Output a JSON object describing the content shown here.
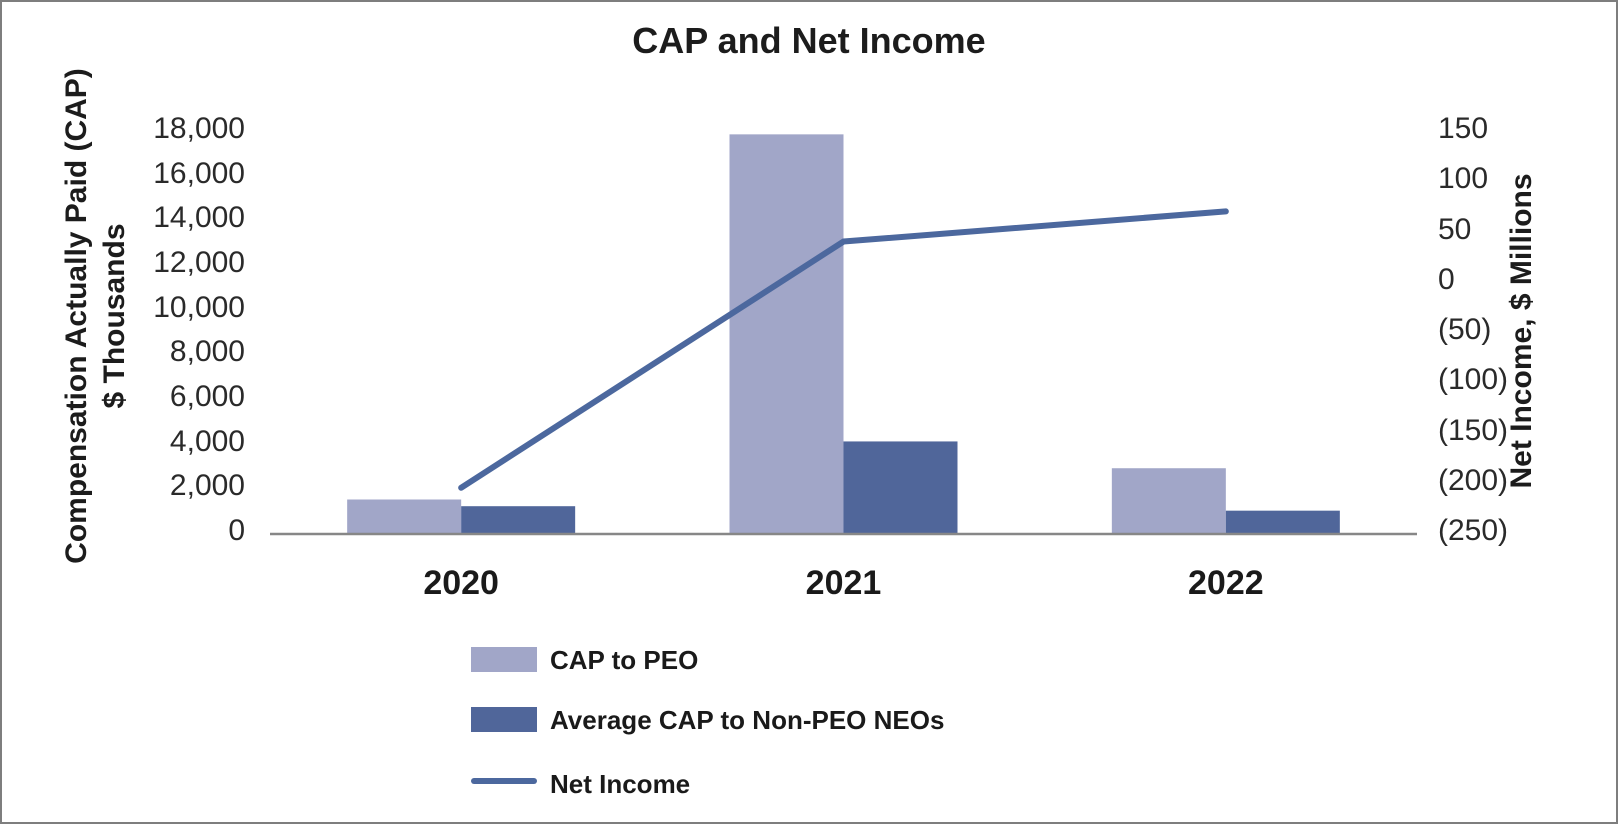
{
  "title": "CAP and Net Income",
  "colors": {
    "cap_to_peo_bar": "#A1A6C8",
    "avg_cap_bar": "#50669A",
    "net_income_line": "#4C689E",
    "axis_line": "#878787",
    "text": "#1c1c1c",
    "border": "#7e7e7e"
  },
  "left_axis": {
    "title_line1": "Compensation Actually Paid (CAP)",
    "title_line2": "$ Thousands",
    "ticks": [
      "18,000",
      "16,000",
      "14,000",
      "12,000",
      "10,000",
      "8,000",
      "6,000",
      "4,000",
      "2,000",
      "0"
    ],
    "min": 0,
    "max": 18000
  },
  "right_axis": {
    "title": "Net Income, $ Millions",
    "ticks": [
      "150",
      "100",
      "50",
      "0",
      "(50)",
      "(100)",
      "(150)",
      "(200)",
      "(250)"
    ],
    "min": -250,
    "max": 150
  },
  "chart_data": {
    "type": "bar+line combo",
    "title": "CAP and Net Income",
    "categories": [
      "2020",
      "2021",
      "2022"
    ],
    "series": [
      {
        "name": "CAP to PEO",
        "type": "bar",
        "axis": "left",
        "color": "#A1A6C8",
        "values": [
          1500,
          17850,
          2900
        ]
      },
      {
        "name": "Average CAP to Non-PEO NEOs",
        "type": "bar",
        "axis": "left",
        "color": "#50669A",
        "values": [
          1200,
          4100,
          1000
        ]
      },
      {
        "name": "Net Income",
        "type": "line",
        "axis": "right",
        "color": "#4C689E",
        "values": [
          -205,
          40,
          70
        ]
      }
    ],
    "left_ylabel": "Compensation Actually Paid (CAP) $ Thousands",
    "right_ylabel": "Net Income, $ Millions",
    "left_ylim": [
      0,
      18000
    ],
    "right_ylim": [
      -250,
      150
    ],
    "grid": false,
    "legend_position": "bottom"
  },
  "legend": {
    "items": [
      {
        "label": "CAP to PEO",
        "swatch": "bar"
      },
      {
        "label": "Average CAP to Non-PEO NEOs",
        "swatch": "bar"
      },
      {
        "label": "Net Income",
        "swatch": "line"
      }
    ]
  }
}
